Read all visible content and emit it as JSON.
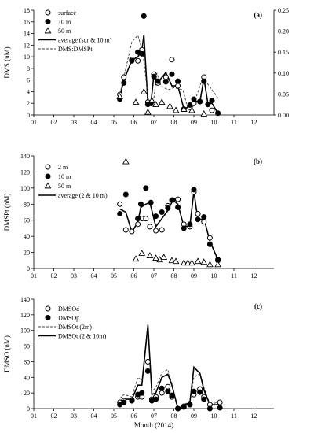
{
  "x_ticks": [
    "01",
    "02",
    "03",
    "04",
    "05",
    "06",
    "07",
    "08",
    "09",
    "10",
    "11",
    "12"
  ],
  "xlabel": "Month (2014)",
  "chart_data": [
    {
      "type": "scatter",
      "panel_label": "(a)",
      "ylabel": "DMS (nM)",
      "ylim": [
        0,
        18
      ],
      "yticks": [
        0,
        2,
        4,
        6,
        8,
        10,
        12,
        14,
        16,
        18
      ],
      "y2lim": [
        0,
        0.25
      ],
      "y2ticks": [
        "0.00",
        "0.05",
        "0.10",
        "0.15",
        "0.20",
        "0.25"
      ],
      "legend_position": "top-left",
      "series": [
        {
          "name": "surface",
          "style": "open-circle",
          "x": [
            5.3,
            5.5,
            5.9,
            6.2,
            6.4,
            6.7,
            6.85,
            7.0,
            7.2,
            7.6,
            7.9,
            8.2,
            8.5,
            8.8,
            9.0,
            9.3,
            9.5,
            9.9
          ],
          "y": [
            3.5,
            6.5,
            9.5,
            9.3,
            11.2,
            2.2,
            2.0,
            7.0,
            5.5,
            6.5,
            9.5,
            5.0,
            1.0,
            1.3,
            2.0,
            2.3,
            6.5,
            0.8
          ]
        },
        {
          "name": "10 m",
          "style": "filled-circle",
          "x": [
            5.3,
            5.5,
            5.9,
            6.2,
            6.4,
            6.5,
            6.7,
            6.85,
            7.0,
            7.2,
            7.6,
            7.9,
            8.2,
            8.5,
            8.8,
            9.0,
            9.3,
            9.5,
            9.7,
            9.9,
            10.2
          ],
          "y": [
            2.7,
            5.5,
            9.3,
            10.8,
            10.5,
            17.0,
            1.8,
            2.0,
            6.6,
            5.8,
            5.7,
            7.0,
            5.8,
            1.0,
            1.7,
            2.7,
            2.3,
            5.8,
            1.8,
            2.5,
            0.3
          ]
        },
        {
          "name": "50 m",
          "style": "open-triangle",
          "x": [
            5.3,
            6.1,
            6.5,
            6.7,
            6.9,
            7.1,
            7.4,
            7.8,
            8.1,
            8.5,
            8.9,
            9.5
          ],
          "y": [
            3.2,
            2.2,
            4.0,
            0.5,
            2.5,
            1.8,
            2.2,
            1.5,
            0.8,
            1.0,
            0.8,
            0.2
          ]
        },
        {
          "name": "average (sur & 10 m)",
          "style": "solid-line",
          "x": [
            5.3,
            5.5,
            5.9,
            6.2,
            6.4,
            6.5,
            6.7,
            6.85,
            7.0,
            7.2,
            7.6,
            7.9,
            8.2,
            8.5,
            8.8,
            9.0,
            9.3,
            9.5,
            9.7,
            9.9,
            10.2
          ],
          "y": [
            3.1,
            6.0,
            9.4,
            10.0,
            11.0,
            13.8,
            2.0,
            2.0,
            6.8,
            5.6,
            7.3,
            5.0,
            5.0,
            1.0,
            1.5,
            2.4,
            2.3,
            6.3,
            1.9,
            2.0,
            0.3
          ]
        },
        {
          "name": "DMS:DMSPt",
          "style": "dashed-line",
          "axis": "right",
          "x": [
            5.3,
            5.5,
            5.9,
            6.2,
            6.45,
            6.75,
            6.95,
            7.15,
            7.35,
            7.7,
            8.0,
            8.45,
            8.7,
            8.95,
            9.45,
            10.2
          ],
          "y": [
            0.05,
            0.09,
            0.175,
            0.19,
            0.15,
            0.025,
            0.02,
            0.1,
            0.07,
            0.06,
            0.065,
            0.06,
            0.015,
            0.02,
            0.09,
            0.04
          ]
        }
      ]
    },
    {
      "type": "scatter",
      "panel_label": "(b)",
      "ylabel": "DMSPt (nM)",
      "ylim": [
        0,
        140
      ],
      "yticks": [
        0,
        20,
        40,
        60,
        80,
        100,
        120,
        140
      ],
      "legend_position": "top-left",
      "series": [
        {
          "name": "2 m",
          "style": "open-circle",
          "x": [
            5.3,
            5.6,
            5.9,
            6.2,
            6.4,
            6.6,
            6.8,
            7.1,
            7.4,
            7.7,
            7.9,
            8.2,
            8.5,
            8.8,
            9.0,
            9.2,
            9.5,
            9.8,
            10.2
          ],
          "y": [
            80,
            48,
            46,
            55,
            62,
            62,
            52,
            47,
            48,
            78,
            85,
            86,
            55,
            52,
            95,
            68,
            58,
            38,
            10
          ]
        },
        {
          "name": "10 m",
          "style": "filled-circle",
          "x": [
            5.3,
            5.6,
            6.2,
            6.35,
            6.6,
            6.85,
            7.1,
            7.4,
            7.7,
            7.95,
            8.2,
            8.5,
            8.8,
            9.0,
            9.2,
            9.5,
            9.8,
            10.2
          ],
          "y": [
            68,
            92,
            62,
            80,
            100,
            82,
            65,
            70,
            75,
            85,
            76,
            50,
            55,
            98,
            61,
            64,
            30,
            11
          ]
        },
        {
          "name": "50 m",
          "style": "open-triangle",
          "x": [
            5.6,
            6.1,
            6.4,
            6.8,
            7.1,
            7.3,
            7.5,
            7.9,
            8.1,
            8.5,
            8.7,
            8.9,
            9.2,
            9.5,
            9.8,
            10.2
          ],
          "y": [
            133,
            12,
            19,
            16,
            13,
            11,
            14,
            10,
            9,
            7,
            7,
            7,
            9,
            8,
            5,
            5
          ]
        },
        {
          "name": "average (2 & 10 m)",
          "style": "solid-line",
          "x": [
            5.3,
            5.6,
            5.9,
            6.2,
            6.35,
            6.6,
            6.8,
            7.1,
            7.4,
            7.7,
            7.95,
            8.2,
            8.5,
            8.8,
            9.0,
            9.2,
            9.5,
            9.8,
            10.2
          ],
          "y": [
            74,
            70,
            45,
            58,
            76,
            80,
            82,
            52,
            62,
            72,
            85,
            80,
            52,
            53,
            96,
            60,
            62,
            34,
            11
          ]
        }
      ]
    },
    {
      "type": "line",
      "panel_label": "(c)",
      "ylabel": "DMSO (nM)",
      "ylim": [
        0,
        140
      ],
      "yticks": [
        0,
        20,
        40,
        60,
        80,
        100,
        120,
        140
      ],
      "legend_position": "top-left",
      "series": [
        {
          "name": "DMSOd",
          "style": "open-circle",
          "x": [
            5.3,
            5.5,
            5.9,
            6.2,
            6.4,
            6.7,
            6.9,
            7.1,
            7.4,
            7.7,
            7.9,
            8.2,
            8.5,
            8.8,
            9.0,
            9.3,
            9.5,
            9.8,
            10.3
          ],
          "y": [
            8,
            10,
            11,
            15,
            15,
            60,
            12,
            15,
            20,
            28,
            15,
            0,
            3,
            5,
            18,
            25,
            15,
            5,
            8
          ]
        },
        {
          "name": "DMSOp",
          "style": "filled-circle",
          "x": [
            5.3,
            5.5,
            5.9,
            6.2,
            6.4,
            6.7,
            6.9,
            7.1,
            7.4,
            7.7,
            7.9,
            8.2,
            8.5,
            8.8,
            9.0,
            9.3,
            9.5,
            9.8,
            10.3
          ],
          "y": [
            5,
            8,
            10,
            18,
            20,
            48,
            10,
            12,
            26,
            22,
            17,
            0,
            2,
            5,
            22,
            21,
            12,
            0,
            1
          ]
        },
        {
          "name": "DMSOt (2m)",
          "style": "dashed-line",
          "x": [
            5.3,
            5.5,
            5.9,
            6.2,
            6.4,
            6.7,
            6.9,
            7.1,
            7.4,
            7.7,
            7.9,
            8.2,
            8.5,
            8.8,
            9.0,
            9.3,
            9.5,
            9.8,
            10.3
          ],
          "y": [
            13,
            18,
            15,
            40,
            36,
            108,
            22,
            27,
            46,
            50,
            32,
            0,
            5,
            10,
            40,
            45,
            27,
            5,
            9
          ]
        },
        {
          "name": "DMSOt (2 & 10m)",
          "style": "solid-line",
          "x": [
            5.3,
            5.5,
            5.9,
            6.2,
            6.4,
            6.7,
            6.9,
            7.1,
            7.4,
            7.7,
            7.9,
            8.2,
            8.5,
            8.8,
            9.0,
            9.3,
            9.5,
            9.8,
            10.3
          ],
          "y": [
            10,
            12,
            12,
            30,
            30,
            107,
            18,
            20,
            40,
            44,
            30,
            0,
            4,
            8,
            53,
            45,
            24,
            5,
            5
          ]
        }
      ]
    }
  ]
}
